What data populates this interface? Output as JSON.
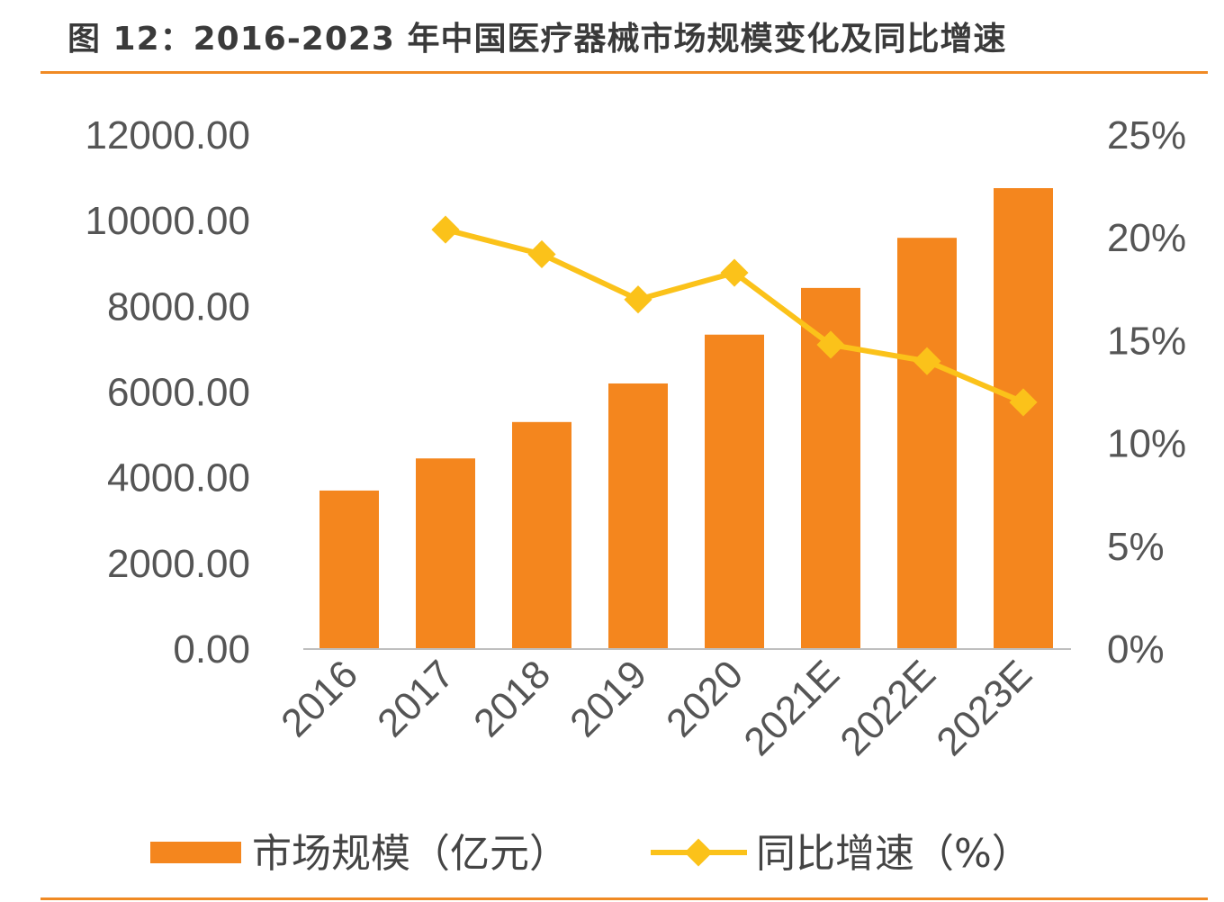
{
  "title": "图 12：2016-2023 年中国医疗器械市场规模变化及同比增速",
  "chart_data": {
    "type": "bar+line",
    "categories": [
      "2016",
      "2017",
      "2018",
      "2019",
      "2020",
      "2021E",
      "2022E",
      "2023E"
    ],
    "series": [
      {
        "name": "市场规模（亿元）",
        "type": "bar",
        "axis": "left",
        "color": "#f4861e",
        "values": [
          3700,
          4450,
          5300,
          6200,
          7340,
          8430,
          9600,
          10760
        ]
      },
      {
        "name": "同比增速（%）",
        "type": "line",
        "axis": "right",
        "color": "#fbc21a",
        "marker": "diamond",
        "values": [
          null,
          20.4,
          19.2,
          17.0,
          18.3,
          14.8,
          14.0,
          12.0
        ]
      }
    ],
    "left_axis": {
      "ylim": [
        0,
        12000
      ],
      "ticks": [
        "0.00",
        "2000.00",
        "4000.00",
        "6000.00",
        "8000.00",
        "10000.00",
        "12000.00"
      ]
    },
    "right_axis": {
      "ylim": [
        0,
        25
      ],
      "ticks": [
        "0%",
        "5%",
        "10%",
        "15%",
        "20%",
        "25%"
      ]
    },
    "grid": false,
    "legend": "bottom"
  }
}
